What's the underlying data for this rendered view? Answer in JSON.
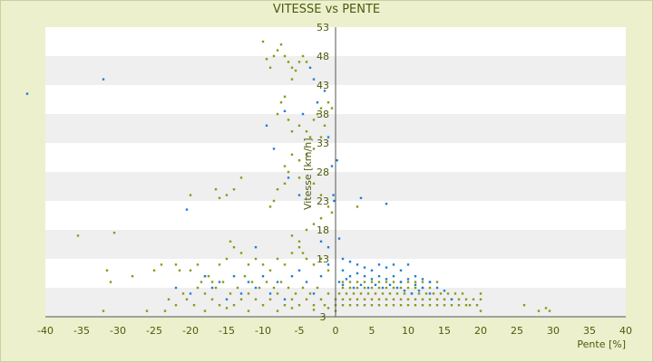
{
  "chart_data": {
    "type": "scatter",
    "title": "VITESSE vs PENTE",
    "xlabel": "Pente [%]",
    "ylabel": "Vitesse [km/h]",
    "xlim": [
      -40,
      40
    ],
    "ylim": [
      3,
      53
    ],
    "xticks": [
      -40,
      -35,
      -30,
      -25,
      -20,
      -15,
      -10,
      -5,
      0,
      5,
      10,
      15,
      20,
      25,
      30,
      35,
      40
    ],
    "yticks": [
      3,
      8,
      13,
      18,
      23,
      28,
      33,
      38,
      43,
      48,
      53
    ],
    "ytick_labels": [
      "3",
      "",
      "13",
      "18",
      "23",
      "28",
      "33",
      "38",
      "43",
      "48",
      "53"
    ],
    "grid": "horizontal bands",
    "colors": {
      "background": "#ecf0cd",
      "band_light": "#ffffff",
      "band_dark": "#efefef",
      "text": "#4b5b0b",
      "series_a": "#8a9a12",
      "series_b": "#1f7fd6"
    },
    "series": [
      {
        "color": "#8a9a12",
        "points": [
          [
            -10,
            50.5
          ],
          [
            -9.5,
            47.5
          ],
          [
            -9,
            46
          ],
          [
            -8.5,
            48
          ],
          [
            -8,
            49
          ],
          [
            -7.5,
            50
          ],
          [
            -7,
            48
          ],
          [
            -6.5,
            47
          ],
          [
            -6,
            46
          ],
          [
            -5,
            47
          ],
          [
            -4.5,
            48
          ],
          [
            -4,
            47
          ],
          [
            -5.5,
            45.5
          ],
          [
            -6,
            44
          ],
          [
            -7,
            41
          ],
          [
            -7.5,
            40
          ],
          [
            -8,
            38
          ],
          [
            -6.5,
            37
          ],
          [
            -6,
            35
          ],
          [
            -5,
            36
          ],
          [
            -4,
            35
          ],
          [
            -3.5,
            34
          ],
          [
            -3,
            37
          ],
          [
            -2.5,
            38
          ],
          [
            -2,
            39
          ],
          [
            -1,
            40
          ],
          [
            -0.5,
            39
          ],
          [
            -1.5,
            36
          ],
          [
            -2,
            34
          ],
          [
            -3,
            32
          ],
          [
            -4,
            31
          ],
          [
            -5,
            30
          ],
          [
            -6,
            31
          ],
          [
            -7,
            29
          ],
          [
            -6.5,
            28
          ],
          [
            -7,
            26
          ],
          [
            -8,
            25
          ],
          [
            -8.5,
            23
          ],
          [
            -9,
            22
          ],
          [
            -5,
            27
          ],
          [
            -3,
            26
          ],
          [
            -2,
            24
          ],
          [
            -1,
            22
          ],
          [
            -0.5,
            21
          ],
          [
            -2,
            20
          ],
          [
            -3,
            19
          ],
          [
            -4,
            18
          ],
          [
            -5,
            16
          ],
          [
            -6,
            17
          ],
          [
            -4.5,
            14
          ],
          [
            -13,
            27
          ],
          [
            -14,
            25
          ],
          [
            -15,
            24
          ],
          [
            -16,
            23.5
          ],
          [
            -16.5,
            25
          ],
          [
            -20,
            24
          ],
          [
            -35.5,
            17
          ],
          [
            -30.5,
            17.5
          ],
          [
            -31.5,
            11
          ],
          [
            -31,
            9
          ],
          [
            -28,
            10
          ],
          [
            -32,
            4
          ],
          [
            -26,
            4
          ],
          [
            -23.5,
            4
          ],
          [
            -22,
            12
          ],
          [
            -21.5,
            11
          ],
          [
            -24,
            12
          ],
          [
            -25,
            11
          ],
          [
            -20,
            11
          ],
          [
            -19,
            12
          ],
          [
            -18,
            10
          ],
          [
            -17,
            9
          ],
          [
            -16,
            12
          ],
          [
            -15,
            13
          ],
          [
            -14,
            15
          ],
          [
            -14.5,
            16
          ],
          [
            -13,
            14
          ],
          [
            -12,
            12
          ],
          [
            -11,
            13
          ],
          [
            -10,
            12
          ],
          [
            -9,
            11
          ],
          [
            -8,
            13
          ],
          [
            -7,
            12
          ],
          [
            -6,
            14
          ],
          [
            -5,
            15
          ],
          [
            -4,
            13
          ],
          [
            -3,
            12
          ],
          [
            -2,
            13
          ],
          [
            -1,
            11
          ],
          [
            -19,
            8
          ],
          [
            -18,
            7
          ],
          [
            -17,
            6
          ],
          [
            -16,
            5
          ],
          [
            -15,
            4.5
          ],
          [
            -14,
            5
          ],
          [
            -13,
            6
          ],
          [
            -12,
            7
          ],
          [
            -11,
            6
          ],
          [
            -10,
            5
          ],
          [
            -9,
            6
          ],
          [
            -8,
            7
          ],
          [
            -7,
            5
          ],
          [
            -6,
            6
          ],
          [
            -5,
            5
          ],
          [
            -4,
            6
          ],
          [
            -3,
            5
          ],
          [
            -2,
            6
          ],
          [
            -1,
            7
          ],
          [
            -1.5,
            5
          ],
          [
            -2.5,
            8
          ],
          [
            -3.5,
            7
          ],
          [
            -4.5,
            8
          ],
          [
            -5.5,
            7
          ],
          [
            -6.5,
            8
          ],
          [
            -7.5,
            9
          ],
          [
            -8.5,
            8
          ],
          [
            -9.5,
            9
          ],
          [
            -10.5,
            8
          ],
          [
            -11.5,
            9
          ],
          [
            -12.5,
            10
          ],
          [
            -13.5,
            8
          ],
          [
            -14.5,
            7
          ],
          [
            -15.5,
            9
          ],
          [
            -16.5,
            8
          ],
          [
            -17.5,
            10
          ],
          [
            -18.5,
            9
          ],
          [
            -19.5,
            5
          ],
          [
            -20.5,
            6
          ],
          [
            -21,
            7
          ],
          [
            -22,
            5
          ],
          [
            -23,
            6
          ],
          [
            -18,
            4
          ],
          [
            -12,
            4
          ],
          [
            -8,
            4
          ],
          [
            -6,
            4.5
          ],
          [
            -3,
            4.2
          ],
          [
            -1,
            4.5
          ],
          [
            0,
            6
          ],
          [
            0,
            5
          ],
          [
            0,
            4
          ],
          [
            0.5,
            7
          ],
          [
            1,
            8
          ],
          [
            1,
            6
          ],
          [
            1.5,
            7
          ],
          [
            2,
            8
          ],
          [
            2,
            6
          ],
          [
            2.5,
            7
          ],
          [
            3,
            8
          ],
          [
            3,
            6
          ],
          [
            3.5,
            7
          ],
          [
            4,
            8
          ],
          [
            4,
            6
          ],
          [
            4.5,
            7
          ],
          [
            5,
            8
          ],
          [
            5,
            6
          ],
          [
            5.5,
            7
          ],
          [
            6,
            8
          ],
          [
            6,
            6
          ],
          [
            6.5,
            7
          ],
          [
            7,
            8
          ],
          [
            7,
            6
          ],
          [
            7.5,
            7
          ],
          [
            8,
            8
          ],
          [
            8,
            6
          ],
          [
            8.5,
            7
          ],
          [
            9,
            8
          ],
          [
            9,
            6
          ],
          [
            9.5,
            7
          ],
          [
            10,
            8
          ],
          [
            10,
            6
          ],
          [
            10.5,
            7
          ],
          [
            11,
            8
          ],
          [
            11,
            6
          ],
          [
            11.5,
            7
          ],
          [
            12,
            8
          ],
          [
            12,
            6
          ],
          [
            12.5,
            7
          ],
          [
            13,
            8
          ],
          [
            13,
            6
          ],
          [
            13.5,
            7
          ],
          [
            14,
            6
          ],
          [
            14.5,
            7
          ],
          [
            15,
            6
          ],
          [
            15.5,
            7
          ],
          [
            16,
            6
          ],
          [
            16.5,
            7
          ],
          [
            17,
            6
          ],
          [
            17.5,
            7
          ],
          [
            18,
            6
          ],
          [
            18.5,
            5
          ],
          [
            19,
            6
          ],
          [
            19.5,
            5
          ],
          [
            20,
            6
          ],
          [
            20,
            7
          ],
          [
            20,
            4
          ],
          [
            1,
            5
          ],
          [
            2,
            5
          ],
          [
            3,
            5
          ],
          [
            4,
            5
          ],
          [
            5,
            5
          ],
          [
            6,
            5
          ],
          [
            7,
            5
          ],
          [
            8,
            5
          ],
          [
            9,
            5
          ],
          [
            10,
            5
          ],
          [
            11,
            5
          ],
          [
            12,
            5
          ],
          [
            13,
            5
          ],
          [
            14,
            5
          ],
          [
            15,
            5
          ],
          [
            16,
            5
          ],
          [
            17,
            5
          ],
          [
            18,
            5
          ],
          [
            1,
            9
          ],
          [
            2,
            9
          ],
          [
            3,
            9
          ],
          [
            4,
            9
          ],
          [
            5,
            9
          ],
          [
            6,
            9
          ],
          [
            7,
            9
          ],
          [
            8,
            9
          ],
          [
            9,
            9
          ],
          [
            10,
            9
          ],
          [
            11,
            9
          ],
          [
            12,
            9
          ],
          [
            13,
            9
          ],
          [
            14,
            9
          ],
          [
            3,
            22
          ],
          [
            26,
            5
          ],
          [
            28,
            4
          ],
          [
            29,
            4.5
          ],
          [
            29.5,
            4
          ]
        ]
      },
      {
        "color": "#1f7fd6",
        "points": [
          [
            -42.5,
            41.5
          ],
          [
            -32,
            44
          ],
          [
            -20.5,
            21.5
          ],
          [
            -9.5,
            36
          ],
          [
            -8.5,
            32
          ],
          [
            -6.5,
            27
          ],
          [
            -7,
            38.5
          ],
          [
            -4.5,
            38
          ],
          [
            -3,
            44
          ],
          [
            -2.5,
            40
          ],
          [
            -1.5,
            42
          ],
          [
            -1,
            34
          ],
          [
            -0.5,
            29
          ],
          [
            -0.3,
            24
          ],
          [
            -0.2,
            23
          ],
          [
            0.2,
            30
          ],
          [
            -3.5,
            46
          ],
          [
            -5,
            24
          ],
          [
            -2,
            16
          ],
          [
            -1,
            15
          ],
          [
            -11,
            15
          ],
          [
            3.5,
            23.5
          ],
          [
            7,
            22.5
          ],
          [
            0.5,
            16.5
          ],
          [
            1,
            13
          ],
          [
            2,
            12.5
          ],
          [
            3,
            12
          ],
          [
            4,
            11.5
          ],
          [
            5,
            11
          ],
          [
            6,
            12
          ],
          [
            7,
            11.5
          ],
          [
            8,
            12
          ],
          [
            9,
            11
          ],
          [
            10,
            12
          ],
          [
            11,
            10
          ],
          [
            12,
            9.5
          ],
          [
            13,
            9
          ],
          [
            14,
            8
          ],
          [
            15,
            7.5
          ],
          [
            16,
            6
          ],
          [
            1,
            11
          ],
          [
            2,
            10
          ],
          [
            3,
            10.5
          ],
          [
            4,
            10
          ],
          [
            5,
            9.5
          ],
          [
            6,
            10
          ],
          [
            7,
            9.5
          ],
          [
            8,
            10
          ],
          [
            9,
            9
          ],
          [
            10,
            9.5
          ],
          [
            11,
            8.5
          ],
          [
            12,
            8
          ],
          [
            13,
            7
          ],
          [
            0.5,
            9
          ],
          [
            1,
            8.5
          ],
          [
            1.5,
            9.5
          ],
          [
            2.5,
            8
          ],
          [
            3.5,
            8.5
          ],
          [
            4.5,
            8
          ],
          [
            5.5,
            8.5
          ],
          [
            6.5,
            8
          ],
          [
            7.5,
            8.5
          ],
          [
            8.5,
            8
          ],
          [
            9.5,
            7.5
          ],
          [
            10.5,
            7
          ],
          [
            11.5,
            7.5
          ],
          [
            -18,
            10
          ],
          [
            -16,
            9
          ],
          [
            -14,
            10
          ],
          [
            -12,
            9
          ],
          [
            -10,
            10
          ],
          [
            -8,
            9
          ],
          [
            -6,
            10
          ],
          [
            -4,
            9
          ],
          [
            -2,
            10
          ],
          [
            -15,
            6
          ],
          [
            -13,
            7
          ],
          [
            -9,
            7
          ],
          [
            -7,
            6
          ],
          [
            -3,
            7
          ],
          [
            -20,
            7
          ],
          [
            -22,
            8
          ],
          [
            -17,
            8
          ],
          [
            -11,
            8
          ],
          [
            -5,
            11
          ],
          [
            -1,
            12
          ]
        ]
      }
    ]
  }
}
